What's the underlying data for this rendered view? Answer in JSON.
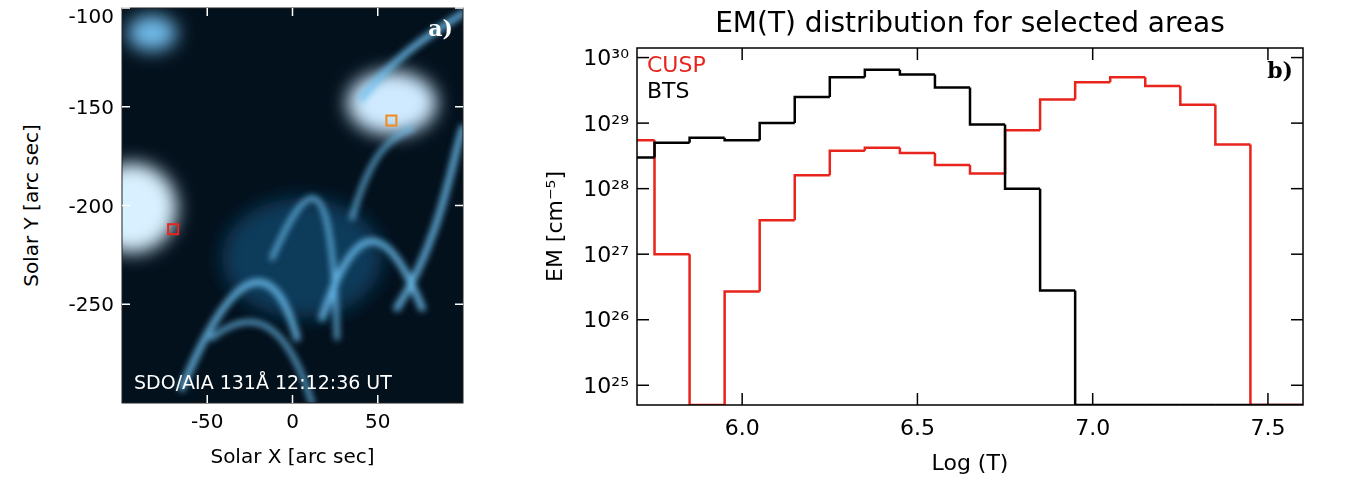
{
  "chart_data": [
    {
      "type": "image",
      "x_label": "Solar X [arc sec]",
      "y_label": "Solar Y [arc sec]",
      "annotations": [
        "a)",
        "SDO/AIA 131Å 12:12:36 UT"
      ],
      "xlim": [
        -100,
        100
      ],
      "ylim": [
        -300,
        -100
      ],
      "xticks": [
        -50,
        0,
        50
      ],
      "yticks": [
        -250,
        -200,
        -150,
        -100
      ],
      "regions": [
        {
          "x": -70,
          "y": -212,
          "color": "#e8241c"
        },
        {
          "x": 58,
          "y": -157,
          "color": "#f08a1c"
        }
      ]
    },
    {
      "type": "histogram",
      "title": "EM(T) distribution for selected areas",
      "x_label": "Log (T)",
      "y_label": "EM [cm⁻⁵]",
      "annotations": [
        "b)"
      ],
      "bins": [
        5.65,
        5.75,
        5.85,
        5.95,
        6.05,
        6.15,
        6.25,
        6.35,
        6.45,
        6.55,
        6.65,
        6.75,
        6.85,
        6.95,
        7.05,
        7.15,
        7.25,
        7.35,
        7.45,
        7.55,
        7.65
      ],
      "series": [
        {
          "name": "CUSP",
          "color": "#e8241c",
          "values": [
            5.5e+28,
            1e+27,
            5e+24,
            2.7e+26,
            3.3e+27,
            1.6e+28,
            3.8e+28,
            4.2e+28,
            3.5e+28,
            2.3e+28,
            1.7e+28,
            7.8e+28,
            2.3e+29,
            4.2e+29,
            5e+29,
            3.7e+29,
            1.9e+29,
            4.7e+28,
            5e+24,
            5e+24
          ]
        },
        {
          "name": "BTS",
          "color": "#000000",
          "values": [
            3e+28,
            5e+28,
            6e+28,
            5.5e+28,
            1e+29,
            2.5e+29,
            5e+29,
            6.5e+29,
            5.5e+29,
            3.5e+29,
            9.5e+28,
            1e+28,
            2.8e+26,
            5e+24,
            5e+24,
            5e+24,
            5e+24,
            5e+24,
            5e+24,
            5e+24
          ]
        }
      ],
      "xlim": [
        5.7,
        7.6
      ],
      "xticks": [
        {
          "value": 6,
          "label": "6.0"
        },
        6.5,
        {
          "value": 7,
          "label": "7.0"
        },
        7.5
      ],
      "ylim": [
        5e+24,
        1.4e+30
      ],
      "yticks": [
        {
          "value": 1e+25,
          "label": "10²⁵"
        },
        {
          "value": 1e+26,
          "label": "10²⁶"
        },
        {
          "value": 1e+27,
          "label": "10²⁷"
        },
        {
          "value": 1e+28,
          "label": "10²⁸"
        },
        {
          "value": 1e+29,
          "label": "10²⁹"
        },
        {
          "value": 1e+30,
          "label": "10³⁰"
        }
      ],
      "log": "y",
      "legend": "upper left"
    }
  ]
}
